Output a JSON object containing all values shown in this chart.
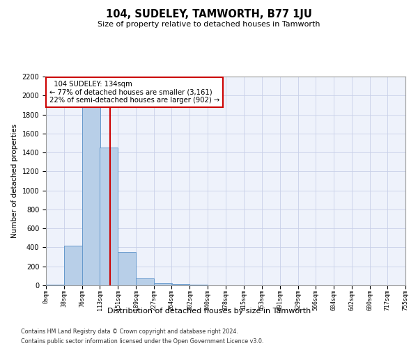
{
  "title": "104, SUDELEY, TAMWORTH, B77 1JU",
  "subtitle": "Size of property relative to detached houses in Tamworth",
  "xlabel": "Distribution of detached houses by size in Tamworth",
  "ylabel": "Number of detached properties",
  "bar_color": "#b8cfe8",
  "bar_edge_color": "#6699cc",
  "annotation_line_color": "#cc0000",
  "annotation_box_color": "#cc0000",
  "annotation_text": "  104 SUDELEY: 134sqm  \n← 77% of detached houses are smaller (3,161)\n22% of semi-detached houses are larger (902) →",
  "property_size": 134,
  "bin_edges": [
    0,
    38,
    76,
    113,
    151,
    189,
    227,
    264,
    302,
    340,
    378,
    415,
    453,
    491,
    529,
    566,
    604,
    642,
    680,
    717,
    755
  ],
  "bin_labels": [
    "0sqm",
    "38sqm",
    "76sqm",
    "113sqm",
    "151sqm",
    "189sqm",
    "227sqm",
    "264sqm",
    "302sqm",
    "340sqm",
    "378sqm",
    "415sqm",
    "453sqm",
    "491sqm",
    "529sqm",
    "566sqm",
    "604sqm",
    "642sqm",
    "680sqm",
    "717sqm",
    "755sqm"
  ],
  "bar_heights": [
    10,
    420,
    1900,
    1450,
    350,
    70,
    25,
    15,
    5,
    2,
    1,
    0,
    0,
    0,
    0,
    0,
    0,
    0,
    0,
    0
  ],
  "ylim": [
    0,
    2200
  ],
  "yticks": [
    0,
    200,
    400,
    600,
    800,
    1000,
    1200,
    1400,
    1600,
    1800,
    2000,
    2200
  ],
  "footnote1": "Contains HM Land Registry data © Crown copyright and database right 2024.",
  "footnote2": "Contains public sector information licensed under the Open Government Licence v3.0.",
  "background_color": "#eef2fb",
  "grid_color": "#c8d0e8"
}
